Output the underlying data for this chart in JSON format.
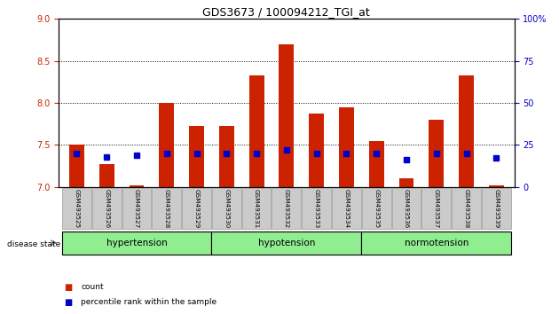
{
  "title": "GDS3673 / 100094212_TGI_at",
  "samples": [
    "GSM493525",
    "GSM493526",
    "GSM493527",
    "GSM493528",
    "GSM493529",
    "GSM493530",
    "GSM493531",
    "GSM493532",
    "GSM493533",
    "GSM493534",
    "GSM493535",
    "GSM493536",
    "GSM493537",
    "GSM493538",
    "GSM493539"
  ],
  "red_values": [
    7.5,
    7.27,
    7.02,
    8.0,
    7.73,
    7.73,
    8.33,
    8.7,
    7.87,
    7.95,
    7.55,
    7.1,
    7.8,
    8.33,
    7.02
  ],
  "blue_percentiles": [
    20,
    18,
    19,
    20,
    20,
    20,
    20,
    22,
    20,
    20,
    20,
    16,
    20,
    20,
    17
  ],
  "ylim_left": [
    7,
    9
  ],
  "ylim_right": [
    0,
    100
  ],
  "yticks_left": [
    7.0,
    7.5,
    8.0,
    8.5,
    9.0
  ],
  "yticks_right": [
    0,
    25,
    50,
    75,
    100
  ],
  "group_ranges": [
    [
      0,
      4,
      "hypertension"
    ],
    [
      5,
      9,
      "hypotension"
    ],
    [
      10,
      14,
      "normotension"
    ]
  ],
  "bar_color": "#CC2200",
  "blue_color": "#0000CC",
  "legend_count": "count",
  "legend_pct": "percentile rank within the sample",
  "disease_state_label": "disease state",
  "group_color": "#90EE90",
  "tick_box_color": "#CBCBCB",
  "tick_box_edge": "#999999"
}
